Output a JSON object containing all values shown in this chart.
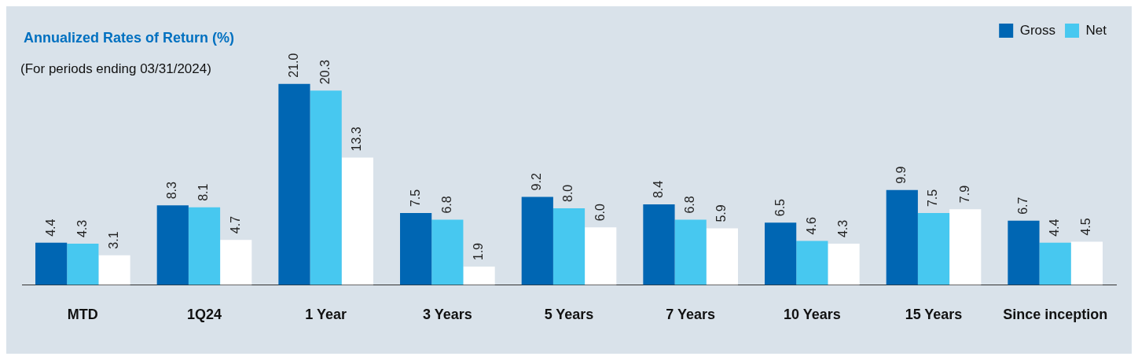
{
  "chart_data": {
    "type": "bar",
    "title": "Annualized Rates of Return (%)",
    "subtitle": "(For periods ending 03/31/2024)",
    "categories": [
      "MTD",
      "1Q24",
      "1 Year",
      "3 Years",
      "5 Years",
      "7 Years",
      "10 Years",
      "15 Years",
      "Since inception"
    ],
    "series": [
      {
        "name": "Gross",
        "color": "#0066b3",
        "values": [
          4.4,
          8.3,
          21.0,
          7.5,
          9.2,
          8.4,
          6.5,
          9.9,
          6.7
        ],
        "value_labels": [
          "4.4",
          "8.3",
          "21.0",
          "7.5",
          "9.2",
          "8.4",
          "6.5",
          "9.9",
          "6.7"
        ]
      },
      {
        "name": "Net",
        "color": "#47c8f0",
        "values": [
          4.3,
          8.1,
          20.3,
          6.8,
          8.0,
          6.8,
          4.6,
          7.5,
          4.4
        ],
        "value_labels": [
          "4.3",
          "8.1",
          "20.3",
          "6.8",
          "8.0",
          "6.8",
          "4.6",
          "7.5",
          "4.4"
        ]
      },
      {
        "color": "#ffffff",
        "values": [
          3.1,
          4.7,
          13.3,
          1.9,
          6.0,
          5.9,
          4.3,
          7.9,
          4.5
        ],
        "value_labels": [
          "3.1",
          "4.7",
          "13.3",
          "1.9",
          "6.0",
          "5.9",
          "4.3",
          "7.9",
          "4.5"
        ]
      }
    ],
    "grid": false,
    "legend": "top right"
  }
}
